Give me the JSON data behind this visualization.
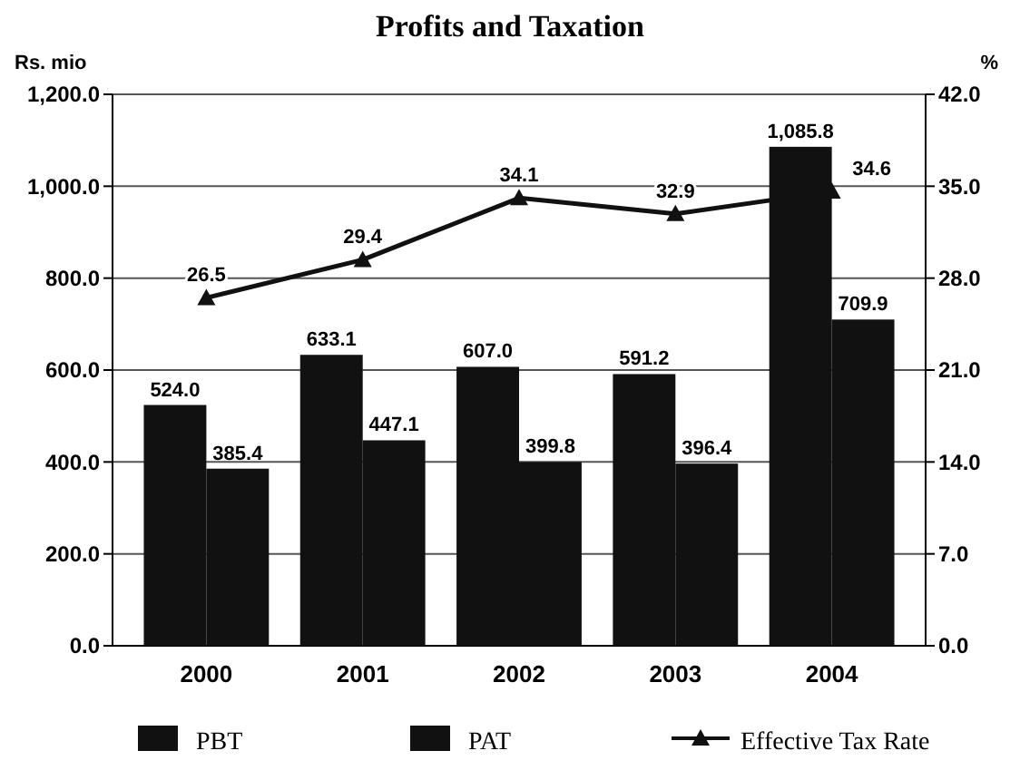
{
  "chart_data": {
    "type": "bar",
    "title": "Profits and Taxation",
    "ylabel": "Rs. mio",
    "y2label": "%",
    "categories": [
      "2000",
      "2001",
      "2002",
      "2003",
      "2004"
    ],
    "series": [
      {
        "name": "PBT",
        "color": "#111111",
        "values": [
          524.0,
          633.1,
          607.0,
          591.2,
          1085.8
        ],
        "value_labels": [
          "524.0",
          "633.1",
          "607.0",
          "591.2",
          "1,085.8"
        ]
      },
      {
        "name": "PAT",
        "color": "#111111",
        "values": [
          385.4,
          447.1,
          399.8,
          396.4,
          709.9
        ],
        "value_labels": [
          "385.4",
          "447.1",
          "399.8",
          "396.4",
          "709.9"
        ]
      },
      {
        "name": "Effective Tax Rate",
        "type": "line",
        "axis": "y2",
        "color": "#111111",
        "marker": "triangle",
        "values": [
          26.5,
          29.4,
          34.1,
          32.9,
          34.6
        ],
        "value_labels": [
          "26.5",
          "29.4",
          "34.1",
          "32.9",
          "34.6"
        ]
      }
    ],
    "ylim": [
      0,
      1200
    ],
    "yticks": [
      {
        "value": 0,
        "label": "0.0"
      },
      {
        "value": 200,
        "label": "200.0"
      },
      {
        "value": 400,
        "label": "400.0"
      },
      {
        "value": 600,
        "label": "600.0"
      },
      {
        "value": 800,
        "label": "800.0"
      },
      {
        "value": 1000,
        "label": "1,000.0"
      },
      {
        "value": 1200,
        "label": "1,200.0"
      }
    ],
    "y2lim": [
      0,
      42
    ],
    "y2ticks": [
      {
        "value": 0,
        "label": "0.0"
      },
      {
        "value": 7,
        "label": "7.0"
      },
      {
        "value": 14,
        "label": "14.0"
      },
      {
        "value": 21,
        "label": "21.0"
      },
      {
        "value": 28,
        "label": "28.0"
      },
      {
        "value": 35,
        "label": "35.0"
      },
      {
        "value": 42,
        "label": "42.0"
      }
    ],
    "grid": "y",
    "legend": "bottom"
  }
}
